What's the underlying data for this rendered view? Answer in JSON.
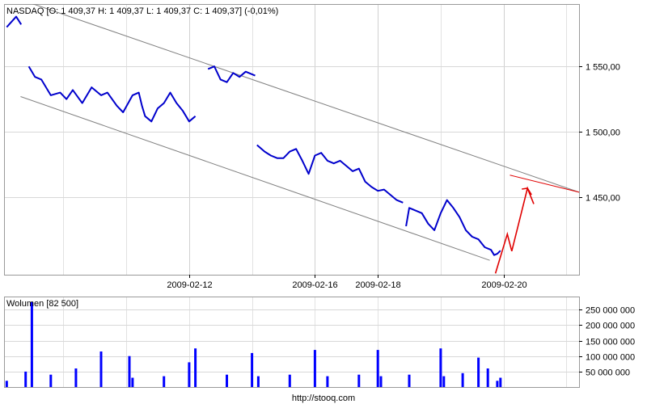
{
  "chart_data": [
    {
      "type": "line",
      "title": "NASDAQ [O: 1 409,37  H: 1 409,37  L: 1 409,37  C: 1 409,37] (-0,01%)",
      "xlabel": "",
      "ylabel": "",
      "x_ticks": [
        {
          "label": "2009-02-12",
          "pos": 3
        },
        {
          "label": "2009-02-16",
          "pos": 5
        },
        {
          "label": "2009-02-18",
          "pos": 6
        },
        {
          "label": "2009-02-20",
          "pos": 8
        }
      ],
      "y_ticks": [
        {
          "value": 1550,
          "label": "1 550,00"
        },
        {
          "value": 1500,
          "label": "1 500,00"
        },
        {
          "value": 1450,
          "label": "1 450,00"
        }
      ],
      "xlim": [
        0.07,
        9.2
      ],
      "ylim": [
        1391,
        1597
      ],
      "grid": true,
      "series": [
        {
          "color": "#0000cc",
          "points": [
            [
              0.1,
              1580
            ],
            [
              0.25,
              1588
            ],
            [
              0.33,
              1582
            ],
            [
              0.45,
              1550
            ],
            [
              0.55,
              1542
            ],
            [
              0.65,
              1540
            ],
            [
              0.8,
              1528
            ],
            [
              0.95,
              1530
            ],
            [
              1.05,
              1525
            ],
            [
              1.15,
              1532
            ],
            [
              1.3,
              1522
            ],
            [
              1.45,
              1534
            ],
            [
              1.6,
              1528
            ],
            [
              1.7,
              1530
            ],
            [
              1.85,
              1520
            ],
            [
              1.95,
              1515
            ],
            [
              2.1,
              1528
            ],
            [
              2.2,
              1530
            ],
            [
              2.25,
              1520
            ],
            [
              2.3,
              1512
            ],
            [
              2.4,
              1508
            ],
            [
              2.5,
              1518
            ],
            [
              2.6,
              1522
            ],
            [
              2.7,
              1530
            ],
            [
              2.8,
              1522
            ],
            [
              2.9,
              1516
            ],
            [
              3.0,
              1508
            ],
            [
              3.1,
              1512
            ],
            [
              3.2,
              1530
            ],
            [
              3.3,
              1548
            ],
            [
              3.4,
              1550
            ],
            [
              3.5,
              1540
            ],
            [
              3.6,
              1538
            ],
            [
              3.7,
              1545
            ],
            [
              3.8,
              1542
            ],
            [
              3.9,
              1546
            ],
            [
              4.0,
              1544
            ],
            [
              4.05,
              1543
            ],
            [
              4.08,
              1490
            ],
            [
              4.2,
              1485
            ],
            [
              4.3,
              1482
            ],
            [
              4.4,
              1480
            ],
            [
              4.5,
              1480
            ],
            [
              4.6,
              1485
            ],
            [
              4.7,
              1487
            ],
            [
              4.8,
              1478
            ],
            [
              4.9,
              1468
            ],
            [
              5.0,
              1482
            ],
            [
              5.1,
              1484
            ],
            [
              5.2,
              1478
            ],
            [
              5.3,
              1476
            ],
            [
              5.4,
              1478
            ],
            [
              5.5,
              1474
            ],
            [
              5.6,
              1470
            ],
            [
              5.7,
              1472
            ],
            [
              5.8,
              1462
            ],
            [
              5.9,
              1458
            ],
            [
              6.0,
              1455
            ],
            [
              6.1,
              1456
            ],
            [
              6.2,
              1452
            ],
            [
              6.3,
              1448
            ],
            [
              6.4,
              1446
            ],
            [
              6.45,
              1428
            ],
            [
              6.5,
              1442
            ],
            [
              6.6,
              1440
            ],
            [
              6.7,
              1438
            ],
            [
              6.8,
              1430
            ],
            [
              6.9,
              1425
            ],
            [
              7.0,
              1438
            ],
            [
              7.1,
              1448
            ],
            [
              7.2,
              1442
            ],
            [
              7.3,
              1435
            ],
            [
              7.4,
              1425
            ],
            [
              7.5,
              1420
            ],
            [
              7.6,
              1418
            ],
            [
              7.7,
              1412
            ],
            [
              7.8,
              1410
            ],
            [
              7.85,
              1406
            ],
            [
              7.9,
              1407
            ],
            [
              7.95,
              1409.37
            ]
          ]
        }
      ],
      "annotations": [
        {
          "type": "trendline",
          "from": [
            0.44,
            1599
          ],
          "to": [
            9.2,
            1454
          ],
          "color": "#808080"
        },
        {
          "type": "trendline",
          "from": [
            0.32,
            1527
          ],
          "to": [
            7.78,
            1402
          ],
          "color": "#808080"
        },
        {
          "type": "trendline",
          "from": [
            8.1,
            1467
          ],
          "to": [
            9.2,
            1454
          ],
          "color": "#e00000"
        },
        {
          "type": "polyline",
          "color": "#e00000",
          "points": [
            [
              7.87,
              1392
            ],
            [
              8.06,
              1422
            ],
            [
              8.13,
              1409
            ],
            [
              8.38,
              1457
            ],
            [
              8.48,
              1445
            ]
          ]
        },
        {
          "type": "arrowhead",
          "at": [
            8.38,
            1457
          ],
          "color": "#e00000"
        }
      ]
    },
    {
      "type": "bar",
      "title": "Wolumen [82 500]",
      "xlabel": "",
      "ylabel": "",
      "y_ticks": [
        {
          "value": 250000000,
          "label": "250 000 000"
        },
        {
          "value": 200000000,
          "label": "200 000 000"
        },
        {
          "value": 150000000,
          "label": "150 000 000"
        },
        {
          "value": 100000000,
          "label": "100 000 000"
        },
        {
          "value": 50000000,
          "label": "50 000 000"
        }
      ],
      "ylim": [
        0,
        290000000
      ],
      "grid": true,
      "color": "#0000ff",
      "x": [
        0.1,
        0.4,
        0.5,
        0.8,
        1.2,
        1.6,
        2.05,
        2.1,
        2.6,
        3.0,
        3.1,
        3.6,
        4.0,
        4.1,
        4.6,
        5.0,
        5.2,
        5.7,
        6.0,
        6.05,
        6.5,
        7.0,
        7.05,
        7.35,
        7.6,
        7.75,
        7.9,
        7.95
      ],
      "values": [
        20000000,
        50000000,
        275000000,
        40000000,
        60000000,
        115000000,
        100000000,
        30000000,
        35000000,
        80000000,
        125000000,
        40000000,
        110000000,
        35000000,
        40000000,
        120000000,
        35000000,
        40000000,
        120000000,
        35000000,
        40000000,
        125000000,
        35000000,
        45000000,
        95000000,
        60000000,
        20000000,
        30000000
      ]
    }
  ],
  "footer": "http://stooq.com"
}
